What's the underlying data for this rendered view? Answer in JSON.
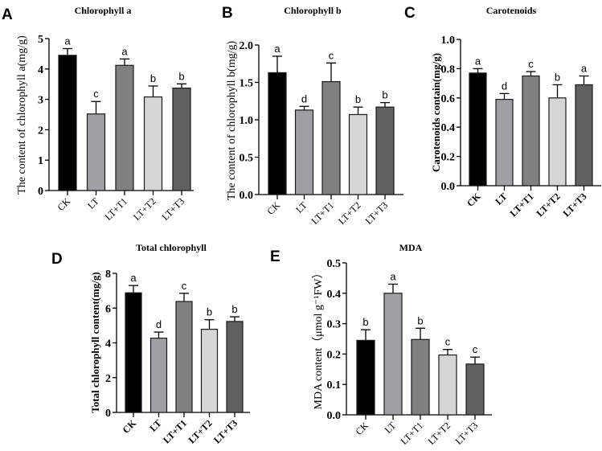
{
  "figure": {
    "categories": [
      "CK",
      "LT",
      "LT+T1",
      "LT+T2",
      "LT+T3"
    ],
    "bar_colors": [
      "#000000",
      "#a0a0a4",
      "#808080",
      "#d6d6d6",
      "#606060"
    ]
  },
  "chart_data": [
    {
      "panel": "A",
      "type": "bar",
      "title": "Chlorophyll a",
      "xlabel": "",
      "ylabel": "The content of chlorophyll a(mg/g)",
      "categories": [
        "CK",
        "LT",
        "LT+T1",
        "LT+T2",
        "LT+T3"
      ],
      "values": [
        4.45,
        2.52,
        4.12,
        3.08,
        3.37
      ],
      "error_upper": [
        4.67,
        2.93,
        4.33,
        3.44,
        3.51
      ],
      "significance": [
        "a",
        "c",
        "a",
        "b",
        "b"
      ],
      "ylim": [
        0,
        5
      ],
      "yticks": [
        "0",
        "1",
        "2",
        "3",
        "4",
        "5"
      ],
      "grid": false
    },
    {
      "panel": "B",
      "type": "bar",
      "title": "Chlorophyll b",
      "xlabel": "",
      "ylabel": "The content of chlorophyll b(mg/g)",
      "categories": [
        "CK",
        "LT",
        "LT+T1",
        "LT+T2",
        "LT+T3"
      ],
      "values": [
        1.63,
        1.13,
        1.51,
        1.07,
        1.17
      ],
      "error_upper": [
        1.85,
        1.18,
        1.76,
        1.17,
        1.23
      ],
      "significance": [
        "a",
        "d",
        "c",
        "b",
        "b"
      ],
      "ylim": [
        0,
        2
      ],
      "yticks": [
        "0.0",
        "0.5",
        "1.0",
        "1.5",
        "2.0"
      ],
      "grid": false
    },
    {
      "panel": "C",
      "type": "bar",
      "title": "Carotenoids",
      "xlabel": "",
      "ylabel": "Carotenoids contain(mg/g)",
      "categories": [
        "CK",
        "LT",
        "LT+T1",
        "LT+T2",
        "LT+T3"
      ],
      "values": [
        0.77,
        0.59,
        0.75,
        0.6,
        0.69
      ],
      "error_upper": [
        0.8,
        0.63,
        0.78,
        0.69,
        0.75
      ],
      "significance": [
        "a",
        "d",
        "c",
        "b",
        "a"
      ],
      "ylim": [
        0,
        1
      ],
      "yticks": [
        "0.0",
        "0.2",
        "0.4",
        "0.6",
        "0.8",
        "1.0"
      ],
      "grid": false
    },
    {
      "panel": "D",
      "type": "bar",
      "title": "Total chlorophyll",
      "xlabel": "",
      "ylabel": "Total chlorophyll content(mg/g)",
      "categories": [
        "CK",
        "LT",
        "LT+T1",
        "LT+T2",
        "LT+T3"
      ],
      "values": [
        6.88,
        4.27,
        6.38,
        4.78,
        5.23
      ],
      "error_upper": [
        7.3,
        4.62,
        6.85,
        5.33,
        5.5
      ],
      "significance": [
        "a",
        "d",
        "c",
        "b",
        "b"
      ],
      "ylim": [
        0,
        8
      ],
      "yticks": [
        "0",
        "2",
        "4",
        "6",
        "8"
      ],
      "grid": false
    },
    {
      "panel": "E",
      "type": "bar",
      "title": "MDA",
      "xlabel": "",
      "ylabel": "MDA content（μmol g⁻¹FW）",
      "categories": [
        "CK",
        "LT",
        "LT+T1",
        "LT+T2",
        "LT+T3"
      ],
      "values": [
        0.245,
        0.4,
        0.248,
        0.197,
        0.167
      ],
      "error_upper": [
        0.28,
        0.43,
        0.285,
        0.215,
        0.19
      ],
      "significance": [
        "b",
        "a",
        "b",
        "c",
        "c"
      ],
      "ylim": [
        0,
        0.5
      ],
      "yticks": [
        "0.0",
        "0.1",
        "0.2",
        "0.3",
        "0.4",
        "0.5"
      ],
      "grid": false
    }
  ]
}
